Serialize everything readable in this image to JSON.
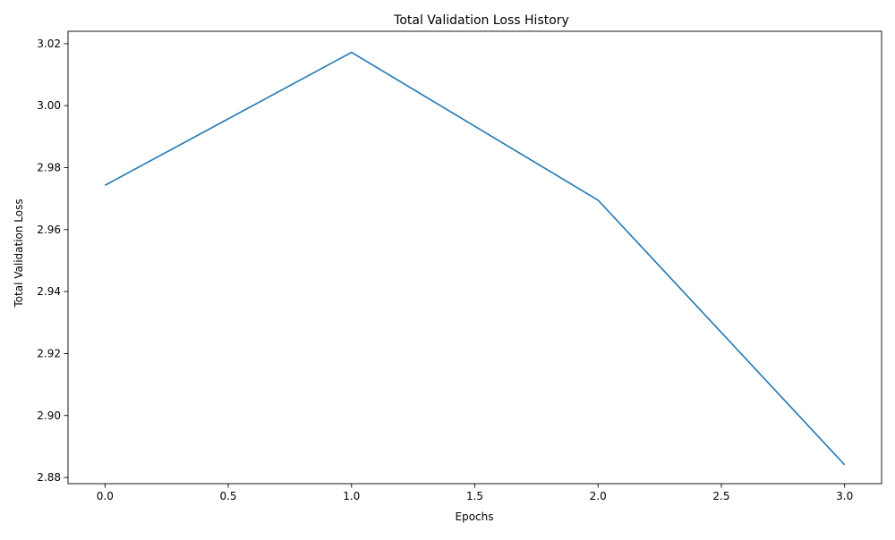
{
  "chart_data": {
    "type": "line",
    "title": "Total Validation Loss History",
    "xlabel": "Epochs",
    "ylabel": "Total Validation Loss",
    "xlim": [
      -0.15,
      3.15
    ],
    "ylim": [
      2.878,
      3.024
    ],
    "x_ticks": [
      0.0,
      0.5,
      1.0,
      1.5,
      2.0,
      2.5,
      3.0
    ],
    "x_tick_labels": [
      "0.0",
      "0.5",
      "1.0",
      "1.5",
      "2.0",
      "2.5",
      "3.0"
    ],
    "y_ticks": [
      2.88,
      2.9,
      2.92,
      2.94,
      2.96,
      2.98,
      3.0,
      3.02
    ],
    "y_tick_labels": [
      "2.88",
      "2.90",
      "2.92",
      "2.94",
      "2.96",
      "2.98",
      "3.00",
      "3.02"
    ],
    "grid": false,
    "legend": "none",
    "series": [
      {
        "x": [
          0,
          1,
          2,
          3
        ],
        "values": [
          2.9743,
          3.0172,
          2.9695,
          2.8841
        ],
        "color": "#1f77b4"
      }
    ]
  }
}
